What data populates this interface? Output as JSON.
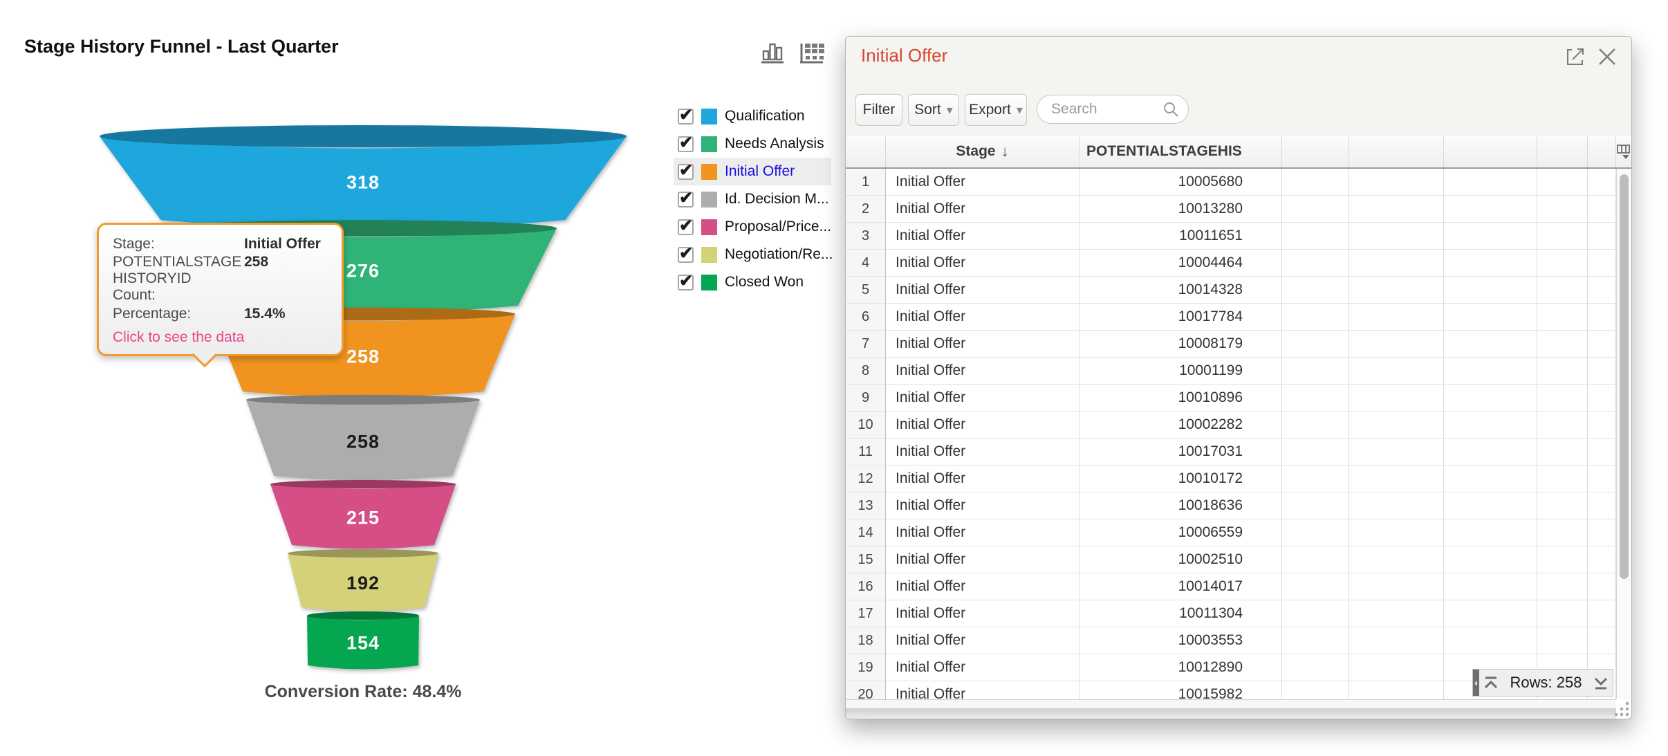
{
  "funnel": {
    "title": "Stage History Funnel - Last Quarter",
    "conversion_label": "Conversion Rate: 48.4%"
  },
  "chart_data": {
    "type": "funnel",
    "title": "Stage History Funnel - Last Quarter",
    "stages": [
      "Qualification",
      "Needs Analysis",
      "Initial Offer",
      "Id. Decision M...",
      "Proposal/Price...",
      "Negotiation/Re...",
      "Closed Won"
    ],
    "values": [
      318,
      276,
      258,
      258,
      215,
      192,
      154
    ],
    "colors": [
      "#1EA7DC",
      "#2FB377",
      "#F0941F",
      "#ADADAD",
      "#D64E86",
      "#D5D178",
      "#04A74F"
    ],
    "label_colors": [
      "#ffffff",
      "#ffffff",
      "#ffffff",
      "#1b1b1b",
      "#ffffff",
      "#1b1b1b",
      "#ffffff"
    ],
    "conversion_rate": "48.4%",
    "selected_stage": "Initial Offer"
  },
  "legend": {
    "items": [
      {
        "label": "Qualification",
        "color": "#1EA7DC",
        "checked": true,
        "highlighted": false
      },
      {
        "label": "Needs Analysis",
        "color": "#2FB377",
        "checked": true,
        "highlighted": false
      },
      {
        "label": "Initial Offer",
        "color": "#F0941F",
        "checked": true,
        "highlighted": true
      },
      {
        "label": "Id. Decision M...",
        "color": "#ADADAD",
        "checked": true,
        "highlighted": false
      },
      {
        "label": "Proposal/Price...",
        "color": "#D64E86",
        "checked": true,
        "highlighted": false
      },
      {
        "label": "Negotiation/Re...",
        "color": "#D5D178",
        "checked": true,
        "highlighted": false
      },
      {
        "label": "Closed Won",
        "color": "#04A74F",
        "checked": true,
        "highlighted": false
      }
    ]
  },
  "tooltip": {
    "stage_label": "Stage:",
    "stage_value": "Initial Offer",
    "count_label": "POTENTIALSTAGE\nHISTORYID\nCount:",
    "count_value": "258",
    "percentage_label": "Percentage:",
    "percentage_value": "15.4%",
    "link": "Click to see the data"
  },
  "panel": {
    "title": "Initial Offer",
    "filter_label": "Filter",
    "sort_label": "Sort",
    "export_label": "Export",
    "search_placeholder": "Search",
    "table": {
      "stage_header": "Stage",
      "sort_indicator": "↓",
      "id_header": "POTENTIALSTAGEHIS",
      "rows": [
        {
          "index": 1,
          "stage": "Initial Offer",
          "id": "10005680"
        },
        {
          "index": 2,
          "stage": "Initial Offer",
          "id": "10013280"
        },
        {
          "index": 3,
          "stage": "Initial Offer",
          "id": "10011651"
        },
        {
          "index": 4,
          "stage": "Initial Offer",
          "id": "10004464"
        },
        {
          "index": 5,
          "stage": "Initial Offer",
          "id": "10014328"
        },
        {
          "index": 6,
          "stage": "Initial Offer",
          "id": "10017784"
        },
        {
          "index": 7,
          "stage": "Initial Offer",
          "id": "10008179"
        },
        {
          "index": 8,
          "stage": "Initial Offer",
          "id": "10001199"
        },
        {
          "index": 9,
          "stage": "Initial Offer",
          "id": "10010896"
        },
        {
          "index": 10,
          "stage": "Initial Offer",
          "id": "10002282"
        },
        {
          "index": 11,
          "stage": "Initial Offer",
          "id": "10017031"
        },
        {
          "index": 12,
          "stage": "Initial Offer",
          "id": "10010172"
        },
        {
          "index": 13,
          "stage": "Initial Offer",
          "id": "10018636"
        },
        {
          "index": 14,
          "stage": "Initial Offer",
          "id": "10006559"
        },
        {
          "index": 15,
          "stage": "Initial Offer",
          "id": "10002510"
        },
        {
          "index": 16,
          "stage": "Initial Offer",
          "id": "10014017"
        },
        {
          "index": 17,
          "stage": "Initial Offer",
          "id": "10011304"
        },
        {
          "index": 18,
          "stage": "Initial Offer",
          "id": "10003553"
        },
        {
          "index": 19,
          "stage": "Initial Offer",
          "id": "10012890"
        },
        {
          "index": 20,
          "stage": "Initial Offer",
          "id": "10015982"
        }
      ]
    },
    "rows_control": {
      "label": "Rows:",
      "count": "258"
    }
  }
}
